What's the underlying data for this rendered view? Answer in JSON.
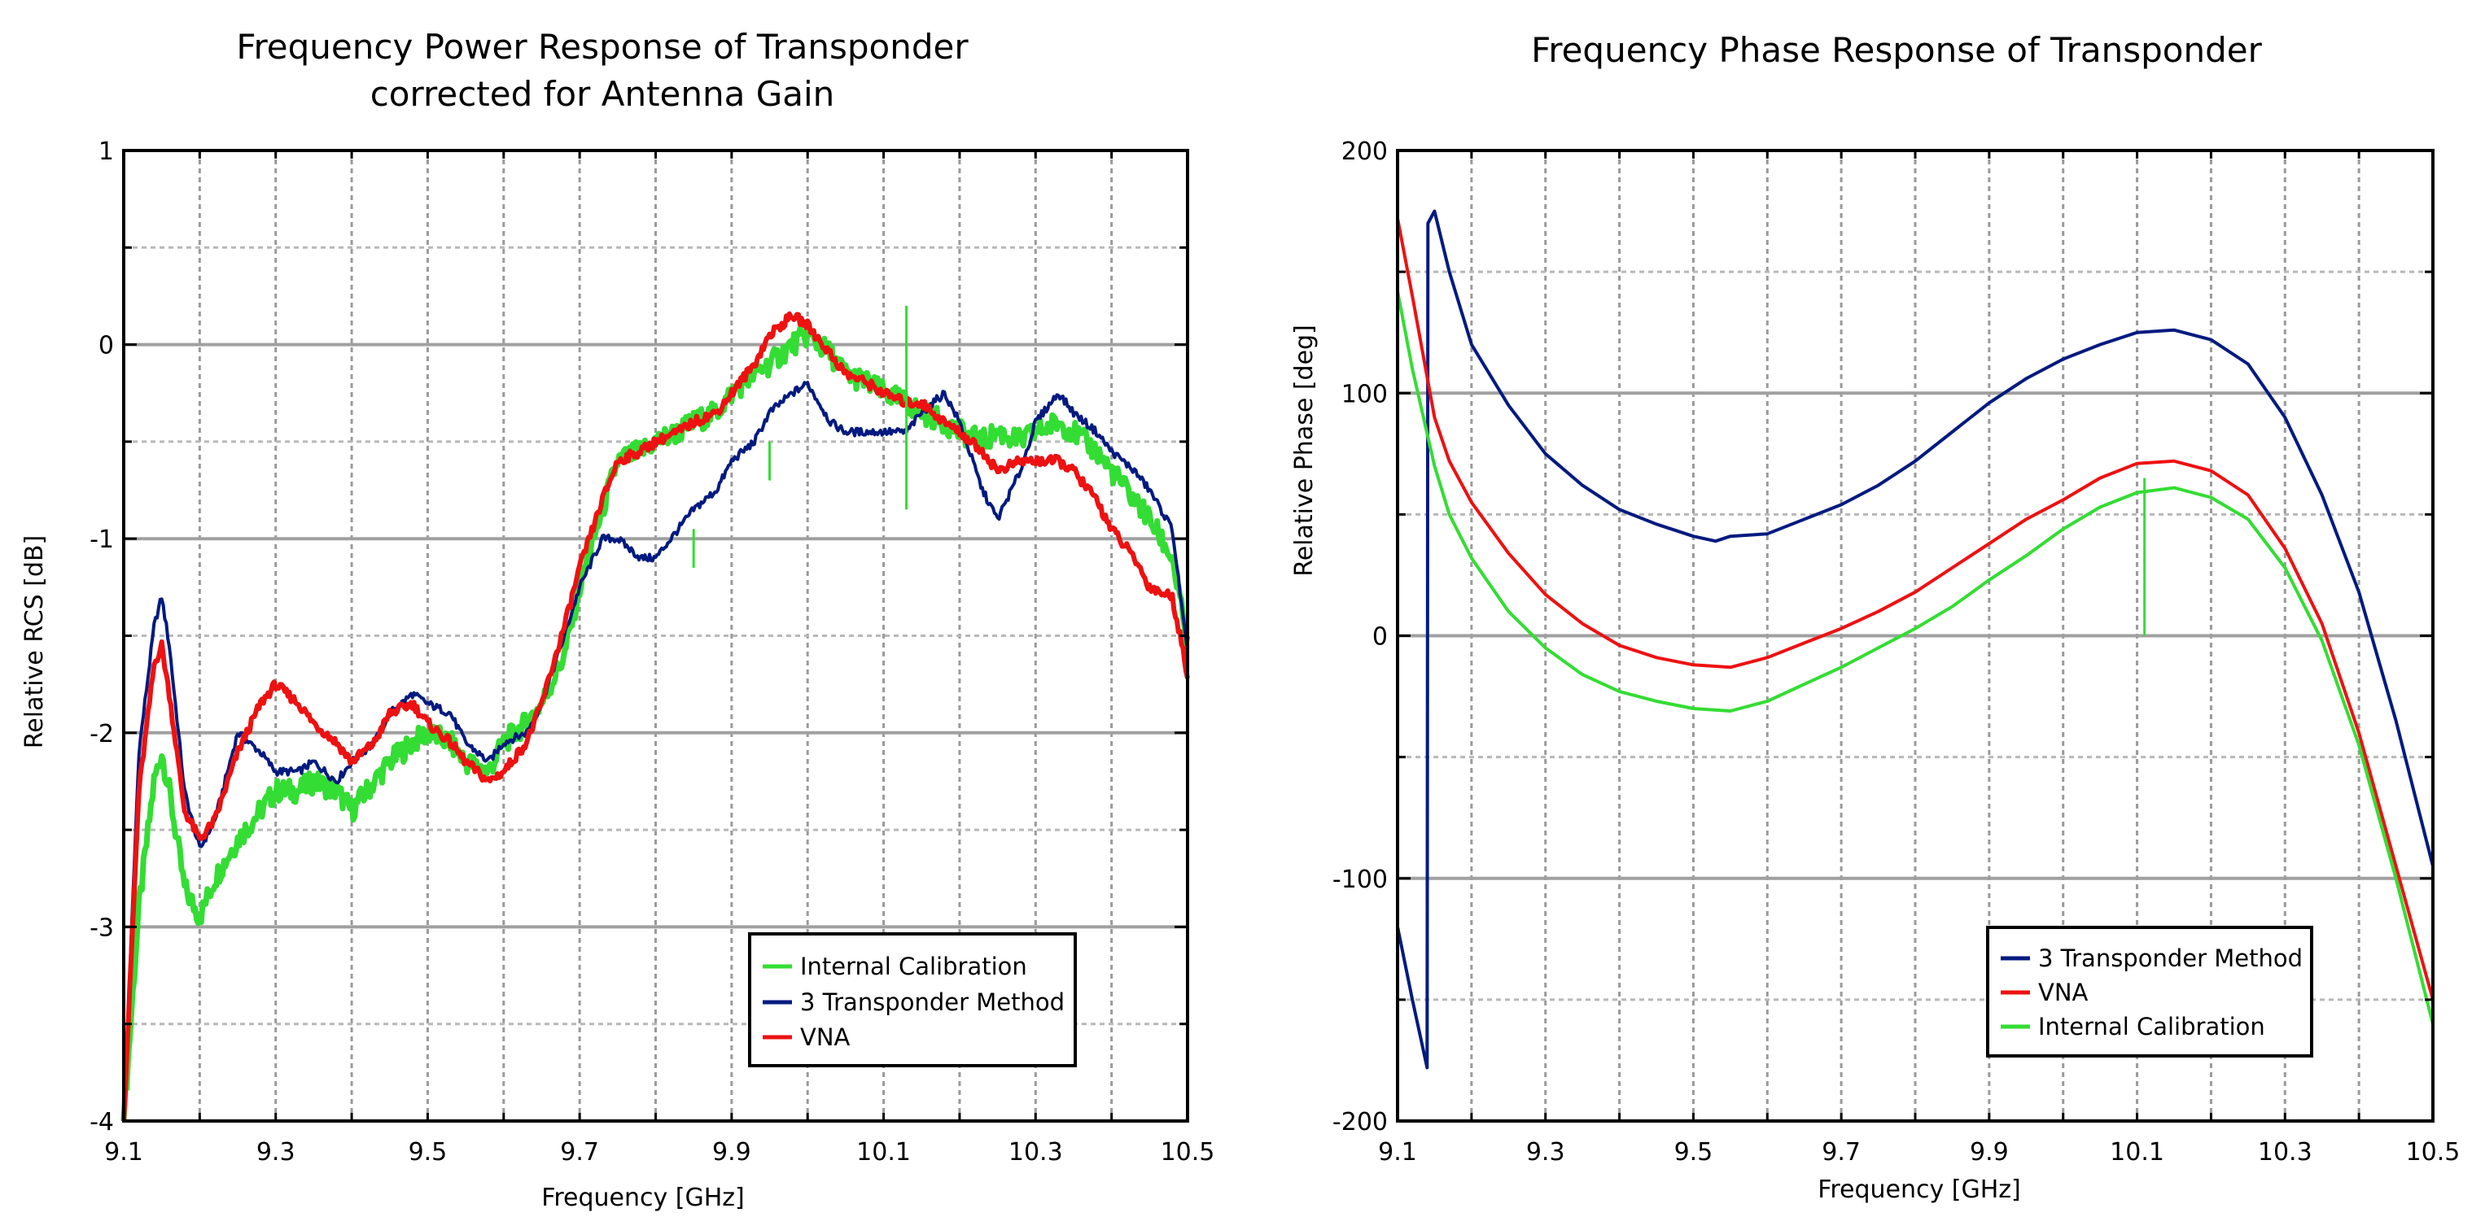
{
  "chart_data": [
    {
      "type": "line",
      "title": [
        "Frequency Power Response of Transponder",
        "corrected for Antenna Gain"
      ],
      "xlabel": "Frequency [GHz]",
      "ylabel": "Relative RCS [dB]",
      "xlim": [
        9.1,
        10.5
      ],
      "ylim": [
        -4,
        1
      ],
      "xticks": [
        9.1,
        9.3,
        9.5,
        9.7,
        9.9,
        10.1,
        10.3,
        10.5
      ],
      "xtick_labels": [
        "9.1",
        "9.3",
        "9.5",
        "9.7",
        "9.9",
        "10.1",
        "10.3",
        "10.5"
      ],
      "yticks": [
        1,
        0,
        -1,
        -2,
        -3,
        -4
      ],
      "ytick_labels": [
        "1",
        "0",
        "-1",
        "-2",
        "-3",
        "-4"
      ],
      "grid": true,
      "legend_position": "bottom-right",
      "legend": [
        "Internal Calibration",
        "3 Transponder Method",
        "VNA"
      ],
      "series": [
        {
          "name": "Internal Calibration",
          "color": "#33dd33",
          "x": [
            9.1,
            9.12,
            9.14,
            9.15,
            9.16,
            9.18,
            9.2,
            9.22,
            9.25,
            9.28,
            9.3,
            9.33,
            9.35,
            9.38,
            9.4,
            9.43,
            9.45,
            9.48,
            9.5,
            9.53,
            9.55,
            9.58,
            9.6,
            9.63,
            9.65,
            9.68,
            9.7,
            9.73,
            9.75,
            9.78,
            9.8,
            9.83,
            9.85,
            9.88,
            9.9,
            9.93,
            9.95,
            9.98,
            10.0,
            10.03,
            10.05,
            10.08,
            10.1,
            10.13,
            10.15,
            10.18,
            10.2,
            10.23,
            10.25,
            10.28,
            10.3,
            10.33,
            10.35,
            10.38,
            10.4,
            10.43,
            10.45,
            10.48,
            10.5
          ],
          "y": [
            -4.0,
            -2.9,
            -2.25,
            -2.1,
            -2.3,
            -2.8,
            -2.95,
            -2.75,
            -2.55,
            -2.4,
            -2.3,
            -2.3,
            -2.25,
            -2.3,
            -2.4,
            -2.25,
            -2.15,
            -2.05,
            -2.0,
            -2.05,
            -2.15,
            -2.2,
            -2.05,
            -1.95,
            -1.85,
            -1.6,
            -1.25,
            -0.85,
            -0.6,
            -0.55,
            -0.5,
            -0.45,
            -0.4,
            -0.35,
            -0.25,
            -0.15,
            -0.1,
            0.0,
            0.05,
            -0.05,
            -0.15,
            -0.2,
            -0.25,
            -0.3,
            -0.35,
            -0.4,
            -0.45,
            -0.5,
            -0.45,
            -0.5,
            -0.45,
            -0.4,
            -0.45,
            -0.55,
            -0.65,
            -0.8,
            -0.9,
            -1.1,
            -1.55
          ]
        },
        {
          "name": "3 Transponder Method",
          "color": "#001a80",
          "x": [
            9.1,
            9.12,
            9.14,
            9.15,
            9.16,
            9.18,
            9.2,
            9.22,
            9.25,
            9.28,
            9.3,
            9.33,
            9.35,
            9.38,
            9.4,
            9.43,
            9.45,
            9.48,
            9.5,
            9.53,
            9.55,
            9.58,
            9.6,
            9.63,
            9.65,
            9.68,
            9.7,
            9.73,
            9.75,
            9.78,
            9.8,
            9.83,
            9.85,
            9.88,
            9.9,
            9.93,
            9.95,
            9.98,
            10.0,
            10.03,
            10.05,
            10.08,
            10.1,
            10.13,
            10.15,
            10.18,
            10.2,
            10.23,
            10.25,
            10.28,
            10.3,
            10.33,
            10.35,
            10.38,
            10.4,
            10.43,
            10.45,
            10.48,
            10.5
          ],
          "y": [
            -4.0,
            -2.1,
            -1.45,
            -1.3,
            -1.55,
            -2.3,
            -2.6,
            -2.45,
            -2.0,
            -2.1,
            -2.2,
            -2.2,
            -2.15,
            -2.25,
            -2.15,
            -2.05,
            -1.9,
            -1.8,
            -1.85,
            -1.9,
            -2.05,
            -2.15,
            -2.05,
            -2.0,
            -1.85,
            -1.5,
            -1.25,
            -1.0,
            -1.0,
            -1.1,
            -1.1,
            -0.95,
            -0.85,
            -0.75,
            -0.6,
            -0.5,
            -0.35,
            -0.25,
            -0.2,
            -0.4,
            -0.45,
            -0.45,
            -0.45,
            -0.45,
            -0.35,
            -0.25,
            -0.4,
            -0.75,
            -0.9,
            -0.65,
            -0.4,
            -0.25,
            -0.35,
            -0.45,
            -0.55,
            -0.65,
            -0.75,
            -0.95,
            -1.6
          ]
        },
        {
          "name": "VNA",
          "color": "#ee1111",
          "x": [
            9.1,
            9.12,
            9.14,
            9.15,
            9.16,
            9.18,
            9.2,
            9.22,
            9.25,
            9.28,
            9.3,
            9.33,
            9.35,
            9.38,
            9.4,
            9.43,
            9.45,
            9.48,
            9.5,
            9.53,
            9.55,
            9.58,
            9.6,
            9.63,
            9.65,
            9.68,
            9.7,
            9.73,
            9.75,
            9.78,
            9.8,
            9.83,
            9.85,
            9.88,
            9.9,
            9.93,
            9.95,
            9.98,
            10.0,
            10.03,
            10.05,
            10.08,
            10.1,
            10.13,
            10.15,
            10.18,
            10.2,
            10.23,
            10.25,
            10.28,
            10.3,
            10.33,
            10.35,
            10.38,
            10.4,
            10.43,
            10.45,
            10.48,
            10.5
          ],
          "y": [
            -4.0,
            -2.3,
            -1.65,
            -1.55,
            -1.8,
            -2.4,
            -2.55,
            -2.45,
            -2.1,
            -1.85,
            -1.75,
            -1.85,
            -1.95,
            -2.05,
            -2.15,
            -2.05,
            -1.9,
            -1.85,
            -1.95,
            -2.05,
            -2.15,
            -2.25,
            -2.2,
            -2.05,
            -1.85,
            -1.45,
            -1.15,
            -0.8,
            -0.6,
            -0.55,
            -0.5,
            -0.45,
            -0.4,
            -0.35,
            -0.25,
            -0.1,
            0.05,
            0.15,
            0.1,
            -0.05,
            -0.15,
            -0.2,
            -0.25,
            -0.3,
            -0.3,
            -0.4,
            -0.45,
            -0.55,
            -0.65,
            -0.6,
            -0.6,
            -0.6,
            -0.65,
            -0.8,
            -0.95,
            -1.1,
            -1.25,
            -1.3,
            -1.7
          ]
        }
      ],
      "annotations": [
        {
          "type": "spike",
          "series": "Internal Calibration",
          "x": 9.85,
          "y_from": -1.15,
          "y_to": -0.95
        },
        {
          "type": "spike",
          "series": "Internal Calibration",
          "x": 9.95,
          "y_from": -0.7,
          "y_to": -0.5
        },
        {
          "type": "spike",
          "series": "Internal Calibration",
          "x": 10.13,
          "y_from": -0.85,
          "y_to": 0.2
        }
      ]
    },
    {
      "type": "line",
      "title": [
        "Frequency Phase Response of Transponder"
      ],
      "xlabel": "Frequency [GHz]",
      "ylabel": "Relative Phase [deg]",
      "xlim": [
        9.1,
        10.5
      ],
      "ylim": [
        -200,
        200
      ],
      "xticks": [
        9.1,
        9.3,
        9.5,
        9.7,
        9.9,
        10.1,
        10.3,
        10.5
      ],
      "xtick_labels": [
        "9.1",
        "9.3",
        "9.5",
        "9.7",
        "9.9",
        "10.1",
        "10.3",
        "10.5"
      ],
      "yticks": [
        200,
        100,
        0,
        -100,
        -200
      ],
      "ytick_labels": [
        "200",
        "100",
        "0",
        "-100",
        "-200"
      ],
      "grid": true,
      "legend_position": "bottom-right",
      "legend": [
        "3 Transponder Method",
        "VNA",
        "Internal Calibration"
      ],
      "series": [
        {
          "name": "3 Transponder Method",
          "color": "#001a80",
          "x": [
            9.1,
            9.12,
            9.14,
            9.141,
            9.15,
            9.17,
            9.2,
            9.25,
            9.3,
            9.35,
            9.4,
            9.45,
            9.5,
            9.53,
            9.55,
            9.6,
            9.65,
            9.7,
            9.75,
            9.8,
            9.85,
            9.9,
            9.95,
            10.0,
            10.05,
            10.1,
            10.15,
            10.2,
            10.25,
            10.3,
            10.35,
            10.4,
            10.45,
            10.5
          ],
          "y": [
            -120,
            -150,
            -178,
            170,
            175,
            150,
            120,
            95,
            75,
            62,
            52,
            46,
            41,
            39,
            41,
            42,
            48,
            54,
            62,
            72,
            84,
            96,
            106,
            114,
            120,
            125,
            126,
            122,
            112,
            90,
            58,
            18,
            -35,
            -95
          ]
        },
        {
          "name": "VNA",
          "color": "#ee1111",
          "x": [
            9.1,
            9.12,
            9.15,
            9.17,
            9.2,
            9.25,
            9.3,
            9.35,
            9.4,
            9.45,
            9.5,
            9.55,
            9.6,
            9.65,
            9.7,
            9.75,
            9.8,
            9.85,
            9.9,
            9.95,
            10.0,
            10.05,
            10.1,
            10.15,
            10.2,
            10.25,
            10.3,
            10.35,
            10.4,
            10.45,
            10.5
          ],
          "y": [
            172,
            140,
            90,
            72,
            55,
            34,
            17,
            5,
            -4,
            -9,
            -12,
            -13,
            -9,
            -3,
            3,
            10,
            18,
            28,
            38,
            48,
            56,
            65,
            71,
            72,
            68,
            58,
            36,
            5,
            -40,
            -95,
            -150
          ]
        },
        {
          "name": "Internal Calibration",
          "color": "#33dd33",
          "x": [
            9.1,
            9.12,
            9.15,
            9.17,
            9.2,
            9.25,
            9.3,
            9.35,
            9.4,
            9.45,
            9.5,
            9.55,
            9.6,
            9.65,
            9.7,
            9.75,
            9.8,
            9.85,
            9.9,
            9.95,
            10.0,
            10.05,
            10.1,
            10.15,
            10.2,
            10.25,
            10.3,
            10.35,
            10.4,
            10.45,
            10.5
          ],
          "y": [
            142,
            110,
            70,
            50,
            32,
            10,
            -5,
            -16,
            -23,
            -27,
            -30,
            -31,
            -27,
            -20,
            -13,
            -5,
            3,
            12,
            23,
            33,
            44,
            53,
            59,
            61,
            57,
            48,
            28,
            -2,
            -45,
            -100,
            -160
          ]
        }
      ],
      "annotations": [
        {
          "type": "spike",
          "series": "Internal Calibration",
          "x": 10.11,
          "y_from": 0,
          "y_to": 65
        }
      ]
    }
  ]
}
